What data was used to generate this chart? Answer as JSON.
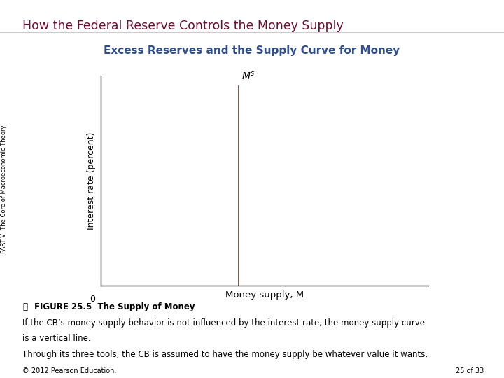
{
  "title": "How the Federal Reserve Controls the Money Supply",
  "title_color": "#6B1030",
  "subtitle": "Excess Reserves and the Supply Curve for Money",
  "subtitle_color": "#2F4F8F",
  "xlabel": "Money supply, M",
  "ylabel": "Interest rate (percent)",
  "ms_label": "$M^s$",
  "origin_label": "0",
  "vertical_line_x": 0.42,
  "xlim": [
    0,
    1
  ],
  "ylim": [
    0,
    1
  ],
  "line_color": "#5C4033",
  "figure_caption_bold": "FIGURE 25.5  The Supply of Money",
  "figure_caption_icon": "Ⓣ",
  "caption_line1": "If the CB’s money supply behavior is not influenced by the interest rate, the money supply curve",
  "caption_line2": "is a vertical line.",
  "caption_line3": "Through its three tools, the CB is assumed to have the money supply be whatever value it wants.",
  "side_text": "PART V  The Core of Macroeconomic Theory",
  "footer_left": "© 2012 Pearson Education.",
  "footer_right": "25 of 33",
  "bg_color": "#FFFFFF",
  "axis_color": "#000000"
}
